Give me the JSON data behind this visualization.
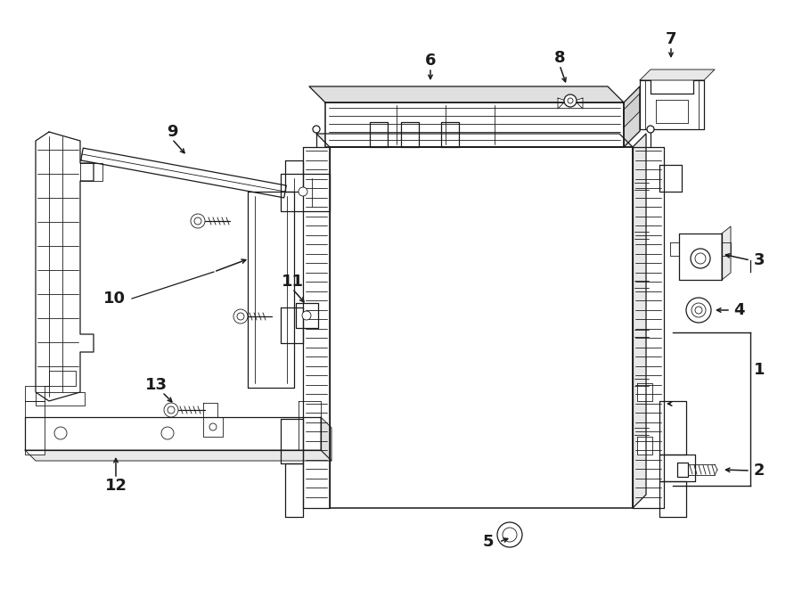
{
  "background_color": "#ffffff",
  "line_color": "#1a1a1a",
  "lw_main": 1.1,
  "lw_thin": 0.6,
  "lw_med": 0.9,
  "figsize": [
    9.0,
    6.62
  ],
  "dpi": 100,
  "label_fontsize": 13
}
